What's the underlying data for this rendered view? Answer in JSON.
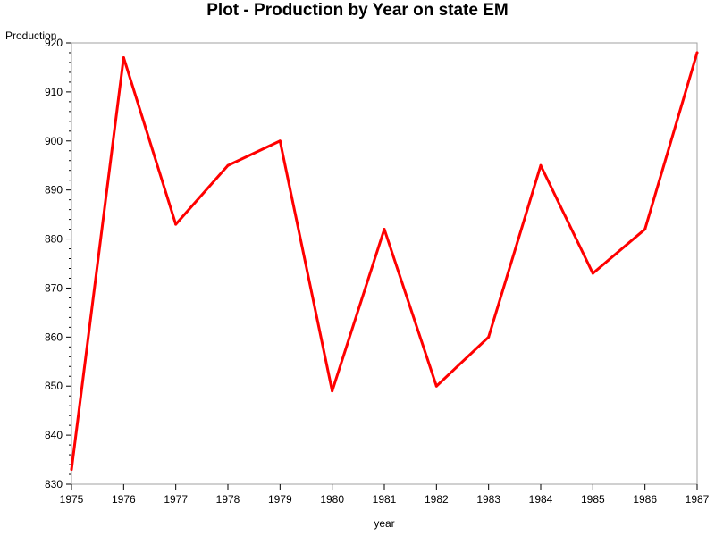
{
  "chart_data": {
    "type": "line",
    "title": "Plot - Production by Year on state EM",
    "xlabel": "year",
    "ylabel": "Production",
    "x": [
      1975,
      1976,
      1977,
      1978,
      1979,
      1980,
      1981,
      1982,
      1983,
      1984,
      1985,
      1986,
      1987
    ],
    "series": [
      {
        "values": [
          833,
          917,
          883,
          895,
          900,
          849,
          882,
          850,
          860,
          895,
          873,
          882,
          918
        ]
      }
    ],
    "xlim": [
      1975,
      1987
    ],
    "ylim": [
      830,
      920
    ],
    "y_ticks": [
      830,
      840,
      850,
      860,
      870,
      880,
      890,
      900,
      910,
      920
    ],
    "x_ticks": [
      1975,
      1976,
      1977,
      1978,
      1979,
      1980,
      1981,
      1982,
      1983,
      1984,
      1985,
      1986,
      1987
    ],
    "line_color": "#ff0000",
    "grid": false,
    "legend": "none"
  }
}
